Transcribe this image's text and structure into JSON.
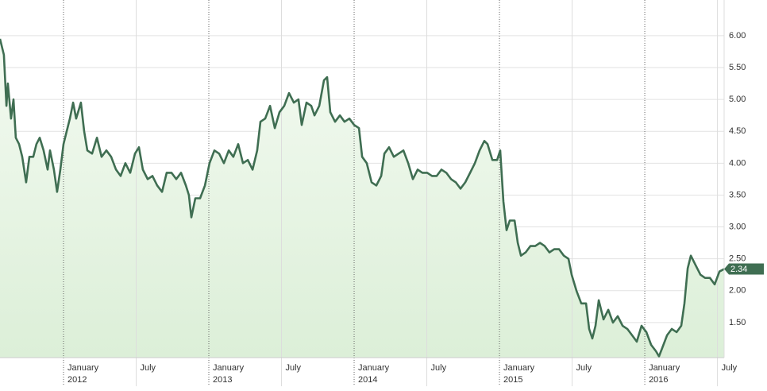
{
  "chart_data": {
    "type": "area",
    "color": "#3f6e52",
    "fill": "#e4f2e2",
    "xlim": [
      2011.563,
      2016.546
    ],
    "ylim": [
      0.95,
      6.56
    ],
    "yticks": [
      {
        "value": 1.5,
        "label": "1.50"
      },
      {
        "value": 2,
        "label": "2.00"
      },
      {
        "value": 2.5,
        "label": "2.50"
      },
      {
        "value": 3,
        "label": "3.00"
      },
      {
        "value": 3.5,
        "label": "3.50"
      },
      {
        "value": 4,
        "label": "4.00"
      },
      {
        "value": 4.5,
        "label": "4.50"
      },
      {
        "value": 5,
        "label": "5.00"
      },
      {
        "value": 5.5,
        "label": "5.50"
      },
      {
        "value": 6,
        "label": "6.00"
      }
    ],
    "xticks": [
      {
        "value": 2012,
        "label": "January",
        "sublabel": "2012"
      },
      {
        "value": 2012.5,
        "label": "July"
      },
      {
        "value": 2013,
        "label": "January",
        "sublabel": "2013"
      },
      {
        "value": 2013.5,
        "label": "July"
      },
      {
        "value": 2014,
        "label": "January",
        "sublabel": "2014"
      },
      {
        "value": 2014.5,
        "label": "July"
      },
      {
        "value": 2015,
        "label": "January",
        "sublabel": "2015"
      },
      {
        "value": 2015.5,
        "label": "July"
      },
      {
        "value": 2016,
        "label": "January",
        "sublabel": "2016"
      },
      {
        "value": 2016.5,
        "label": "July"
      }
    ],
    "grid": true,
    "x": [
      2011.563,
      2011.59,
      2011.607,
      2011.617,
      2011.639,
      2011.656,
      2011.672,
      2011.694,
      2011.716,
      2011.743,
      2011.765,
      2011.792,
      2011.814,
      2011.836,
      2011.863,
      2011.891,
      2011.907,
      2011.934,
      2011.956,
      2011.978,
      2012.0,
      2012.022,
      2012.044,
      2012.066,
      2012.087,
      2012.12,
      2012.142,
      2012.164,
      2012.197,
      2012.23,
      2012.262,
      2012.295,
      2012.328,
      2012.361,
      2012.393,
      2012.426,
      2012.459,
      2012.492,
      2012.519,
      2012.546,
      2012.579,
      2012.612,
      2012.645,
      2012.678,
      2012.71,
      2012.743,
      2012.776,
      2012.809,
      2012.842,
      2012.863,
      2012.88,
      2012.907,
      2012.94,
      2012.973,
      2013.005,
      2013.038,
      2013.071,
      2013.104,
      2013.137,
      2013.169,
      2013.202,
      2013.235,
      2013.268,
      2013.301,
      2013.333,
      2013.355,
      2013.388,
      2013.421,
      2013.454,
      2013.486,
      2013.519,
      2013.552,
      2013.585,
      2013.617,
      2013.639,
      2013.672,
      2013.705,
      2013.727,
      2013.76,
      2013.792,
      2013.814,
      2013.836,
      2013.869,
      2013.902,
      2013.934,
      2013.967,
      2014.0,
      2014.033,
      2014.055,
      2014.087,
      2014.12,
      2014.153,
      2014.186,
      2014.208,
      2014.24,
      2014.273,
      2014.306,
      2014.339,
      2014.372,
      2014.404,
      2014.437,
      2014.47,
      2014.503,
      2014.536,
      2014.568,
      2014.601,
      2014.634,
      2014.667,
      2014.699,
      2014.732,
      2014.765,
      2014.798,
      2014.831,
      2014.863,
      2014.896,
      2014.918,
      2014.951,
      2014.984,
      2015.005,
      2015.027,
      2015.049,
      2015.071,
      2015.104,
      2015.126,
      2015.148,
      2015.18,
      2015.213,
      2015.246,
      2015.279,
      2015.311,
      2015.344,
      2015.377,
      2015.41,
      2015.443,
      2015.475,
      2015.497,
      2015.53,
      2015.563,
      2015.596,
      2015.617,
      2015.639,
      2015.661,
      2015.683,
      2015.716,
      2015.749,
      2015.781,
      2015.814,
      2015.847,
      2015.88,
      2015.913,
      2015.945,
      2015.978,
      2016.011,
      2016.044,
      2016.077,
      2016.098,
      2016.12,
      2016.153,
      2016.186,
      2016.219,
      2016.251,
      2016.273,
      2016.295,
      2016.317,
      2016.35,
      2016.383,
      2016.415,
      2016.448,
      2016.481,
      2016.514,
      2016.546
    ],
    "values": [
      5.95,
      5.7,
      4.9,
      5.25,
      4.7,
      5.0,
      4.4,
      4.3,
      4.1,
      3.7,
      4.1,
      4.1,
      4.3,
      4.4,
      4.2,
      3.9,
      4.2,
      3.9,
      3.55,
      3.9,
      4.3,
      4.5,
      4.7,
      4.95,
      4.7,
      4.95,
      4.5,
      4.2,
      4.15,
      4.4,
      4.1,
      4.2,
      4.1,
      3.9,
      3.8,
      4.0,
      3.85,
      4.15,
      4.25,
      3.9,
      3.75,
      3.8,
      3.65,
      3.55,
      3.85,
      3.85,
      3.75,
      3.85,
      3.65,
      3.5,
      3.15,
      3.45,
      3.45,
      3.65,
      4.0,
      4.2,
      4.15,
      4.0,
      4.2,
      4.1,
      4.3,
      4.0,
      4.05,
      3.9,
      4.2,
      4.65,
      4.7,
      4.9,
      4.55,
      4.8,
      4.9,
      5.1,
      4.95,
      5.0,
      4.6,
      4.95,
      4.9,
      4.75,
      4.9,
      5.3,
      5.35,
      4.8,
      4.65,
      4.75,
      4.65,
      4.7,
      4.6,
      4.55,
      4.1,
      4.0,
      3.7,
      3.65,
      3.8,
      4.15,
      4.25,
      4.1,
      4.15,
      4.2,
      4.0,
      3.75,
      3.9,
      3.85,
      3.85,
      3.8,
      3.8,
      3.9,
      3.85,
      3.75,
      3.7,
      3.6,
      3.7,
      3.85,
      4.0,
      4.2,
      4.35,
      4.3,
      4.05,
      4.05,
      4.2,
      3.4,
      2.95,
      3.1,
      3.1,
      2.75,
      2.55,
      2.6,
      2.7,
      2.7,
      2.75,
      2.7,
      2.6,
      2.65,
      2.65,
      2.55,
      2.5,
      2.25,
      2.0,
      1.8,
      1.8,
      1.4,
      1.25,
      1.45,
      1.85,
      1.55,
      1.7,
      1.5,
      1.6,
      1.45,
      1.4,
      1.3,
      1.2,
      1.45,
      1.35,
      1.15,
      1.05,
      0.97,
      1.1,
      1.3,
      1.4,
      1.35,
      1.45,
      1.8,
      2.35,
      2.55,
      2.4,
      2.25,
      2.2,
      2.2,
      2.1,
      2.3,
      2.34
    ]
  }
}
